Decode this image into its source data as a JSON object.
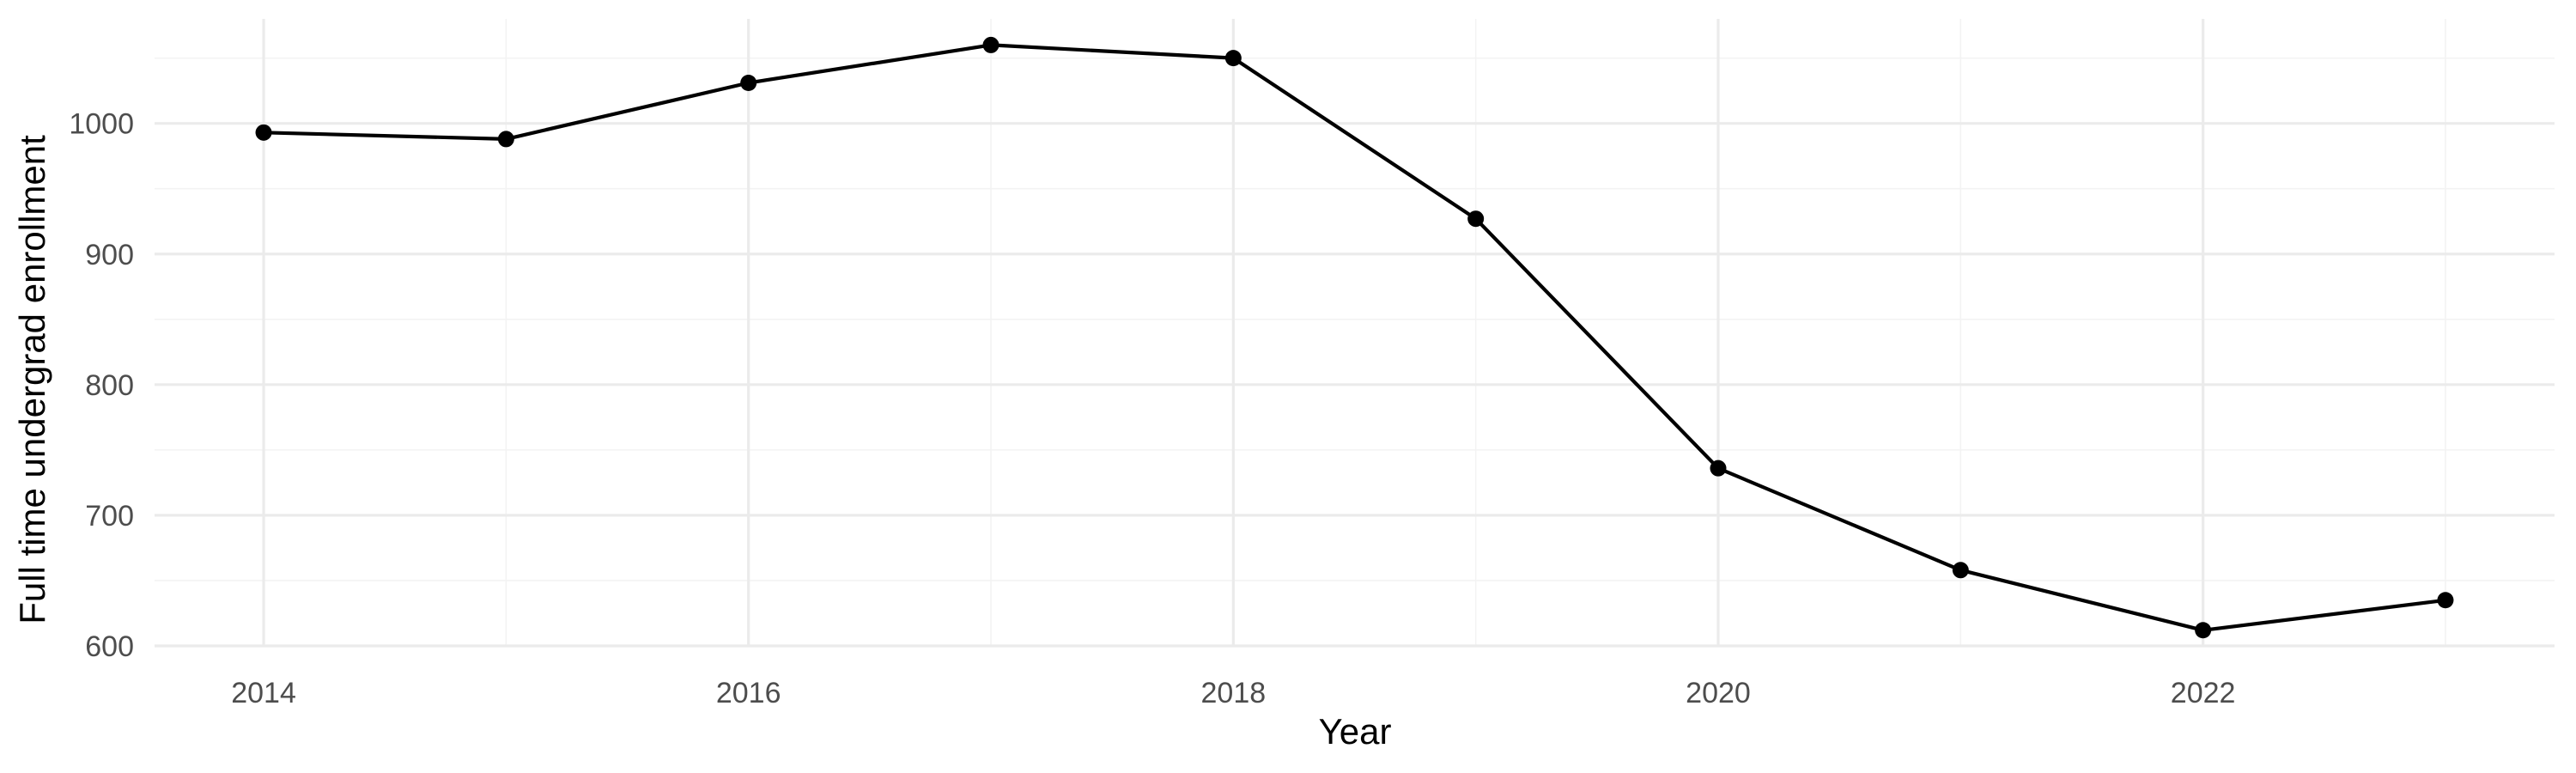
{
  "chart_data": {
    "type": "line",
    "title": "",
    "xlabel": "Year",
    "ylabel": "Full time undergrad enrollment",
    "x": [
      2014,
      2015,
      2016,
      2017,
      2018,
      2019,
      2020,
      2021,
      2022,
      2023
    ],
    "series": [
      {
        "values": [
          993,
          988,
          1031,
          1060,
          1050,
          927,
          736,
          658,
          612,
          635
        ],
        "color": "#000000"
      }
    ],
    "xlim": [
      2013.55,
      2023.45
    ],
    "ylim": [
      600,
      1080
    ],
    "x_ticks": [
      2014,
      2016,
      2018,
      2020,
      2022
    ],
    "y_ticks": [
      600,
      700,
      800,
      900,
      1000
    ],
    "grid": true,
    "legend": "none",
    "colors": {
      "background": "#ffffff",
      "grid_major": "#ebebeb",
      "grid_minor": "#f3f3f3",
      "tick_text": "#4d4d4d",
      "title_text": "#000000"
    }
  }
}
